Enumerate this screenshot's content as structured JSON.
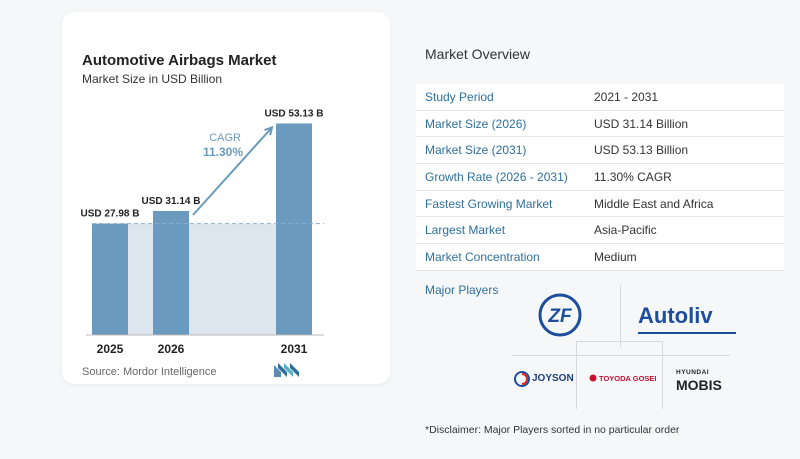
{
  "card": {
    "title": "Automotive Airbags Market",
    "subtitle": "Market Size in USD Billion",
    "source": "Source:  Mordor Intelligence"
  },
  "chart_data": {
    "type": "bar",
    "title": "Automotive Airbags Market",
    "subtitle": "Market Size in USD Billion",
    "categories": [
      "2025",
      "2026",
      "2031"
    ],
    "values": [
      27.98,
      31.14,
      53.13
    ],
    "value_labels": [
      "USD 27.98 B",
      "USD 31.14 B",
      "USD 53.13 B"
    ],
    "cagr_label": "CAGR",
    "cagr_value": "11.30%",
    "bar_color": "#6a9bbf",
    "shade_color": "#dde6ee",
    "ylim": [
      0,
      55
    ],
    "grid": false
  },
  "overview": {
    "title": "Market Overview",
    "rows": [
      {
        "label": "Study Period",
        "value": "2021 - 2031"
      },
      {
        "label": "Market Size (2026)",
        "value": "USD 31.14 Billion"
      },
      {
        "label": "Market Size (2031)",
        "value": "USD 53.13 Billion"
      },
      {
        "label": "Growth Rate (2026 - 2031)",
        "value": "11.30% CAGR"
      },
      {
        "label": "Fastest Growing Market",
        "value": "Middle East and Africa"
      },
      {
        "label": "Largest Market",
        "value": "Asia-Pacific"
      },
      {
        "label": "Market Concentration",
        "value": "Medium"
      }
    ]
  },
  "players": {
    "title": "Major Players",
    "logos": [
      "ZF",
      "Autoliv",
      "JOYSON",
      "TOYODA GOSEI",
      "HYUNDAI",
      "MOBIS"
    ]
  },
  "disclaimer": "*Disclaimer: Major Players sorted in no particular order",
  "colors": {
    "accent": "#2e6f9e",
    "bar": "#6a9bbf",
    "logo_blue": "#1d4e9e"
  }
}
